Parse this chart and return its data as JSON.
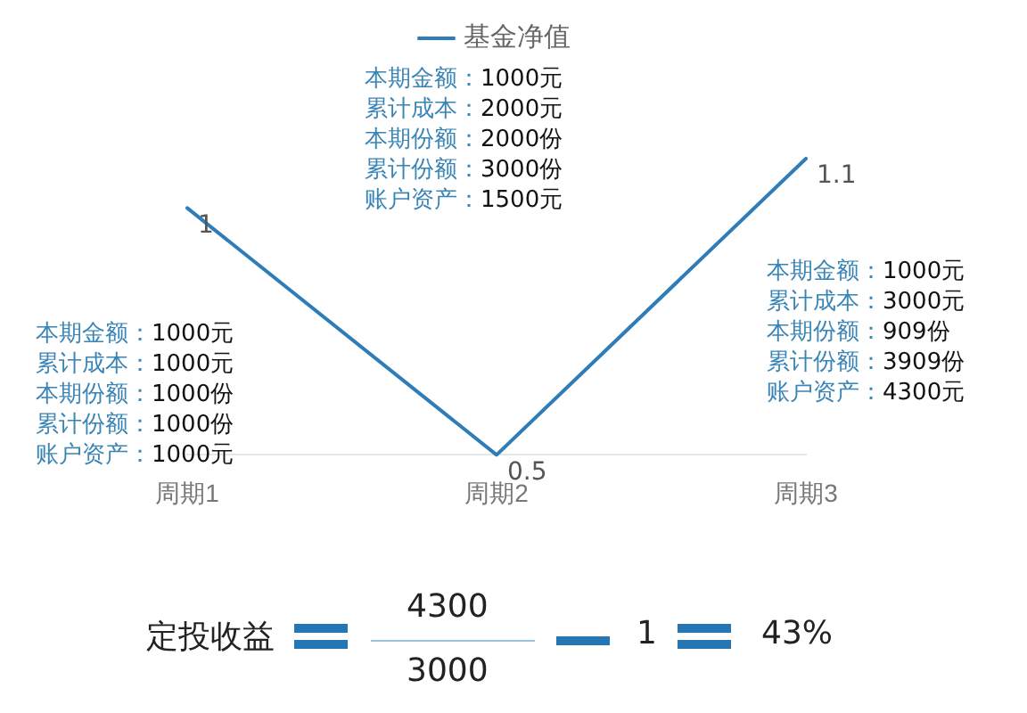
{
  "chart_data": {
    "type": "line",
    "categories": [
      "周期1",
      "周期2",
      "周期3"
    ],
    "series": [
      {
        "name": "基金净值",
        "color": "#2e7db8",
        "values": [
          1,
          0.5,
          1.1
        ]
      }
    ],
    "data_labels": true,
    "legend": "top",
    "grid": false,
    "tick_labels": "x",
    "marker": "none",
    "line_style": "solid",
    "annotations": [
      "本期金额：1000元",
      "累计成本：1000元",
      "本期份额：1000份",
      "累计份额：1000份",
      "账户资产：1000元",
      "本期金额：1000元",
      "累计成本：2000元",
      "本期份额：2000份",
      "累计份额：3000份",
      "账户资产：1500元",
      "本期金额：1000元",
      "累计成本：3000元",
      "本期份额：909份",
      "累计份额：3909份",
      "账户资产：4300元",
      "定投收益",
      "4300",
      "3000",
      "1",
      "43%"
    ]
  }
}
